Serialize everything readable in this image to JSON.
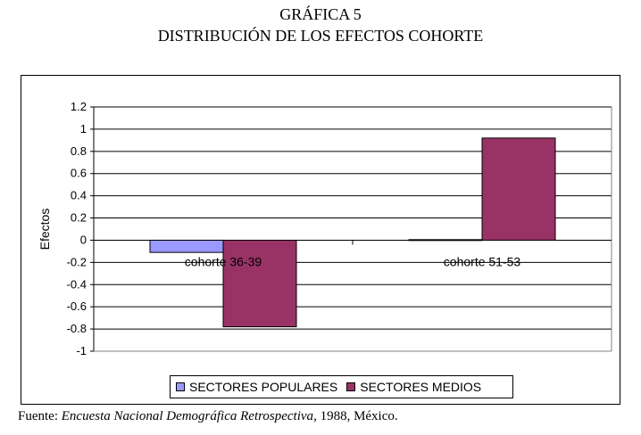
{
  "header": {
    "title": "GRÁFICA 5",
    "subtitle": "DISTRIBUCIÓN DE LOS EFECTOS COHORTE"
  },
  "chart_data": {
    "type": "bar",
    "categories": [
      "cohorte 36-39",
      "cohorte 51-53"
    ],
    "series": [
      {
        "name": "SECTORES POPULARES",
        "values": [
          -0.11,
          0.005
        ],
        "color": "#9999ff"
      },
      {
        "name": "SECTORES MEDIOS",
        "values": [
          -0.78,
          0.92
        ],
        "color": "#993366"
      }
    ],
    "ylabel": "Efectos",
    "xlabel": "",
    "ylim": [
      -1,
      1.2
    ],
    "yticks": [
      1.2,
      1,
      0.8,
      0.6,
      0.4,
      0.2,
      0,
      -0.2,
      -0.4,
      -0.6,
      -0.8,
      -1
    ],
    "grid": true,
    "legend": "bottom"
  },
  "source": {
    "prefix": "Fuente: ",
    "italic": "Encuesta Nacional Demográfica Retrospectiva",
    "suffix": ", 1988, México."
  }
}
